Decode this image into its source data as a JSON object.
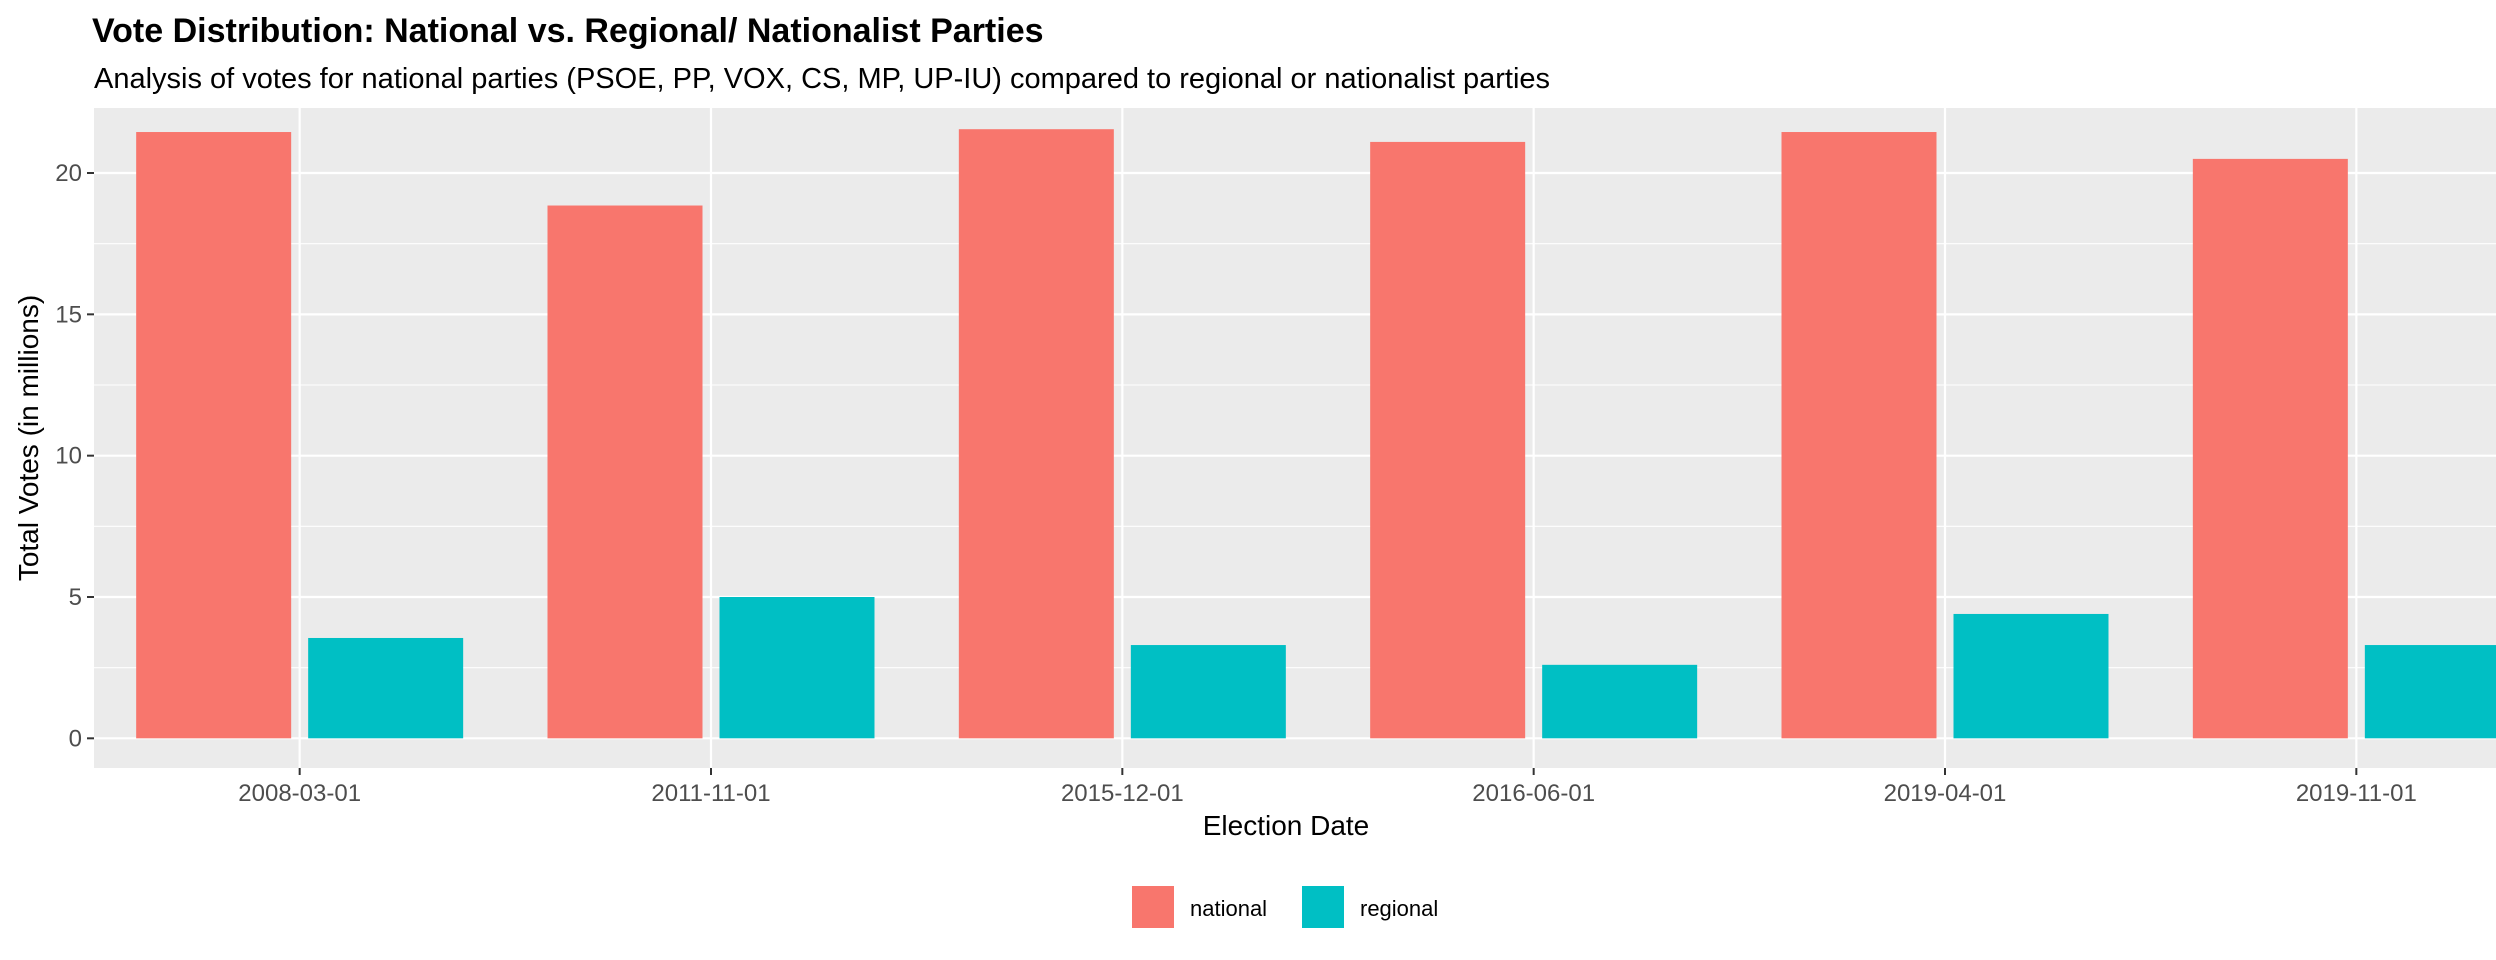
{
  "chart_data": {
    "type": "bar",
    "title": "Vote Distribution: National vs. Regional/ Nationalist Parties",
    "subtitle": "Analysis of votes for national parties (PSOE, PP, VOX, CS, MP, UP-IU) compared to regional or nationalist parties",
    "xlabel": "Election Date",
    "ylabel": "Total Votes (in millions)",
    "categories": [
      "2008-03-01",
      "2011-11-01",
      "2015-12-01",
      "2016-06-01",
      "2019-04-01",
      "2019-11-01"
    ],
    "series": [
      {
        "name": "national",
        "color": "#F8766D",
        "values": [
          21.45,
          18.85,
          21.55,
          21.1,
          21.45,
          20.5
        ]
      },
      {
        "name": "regional",
        "color": "#00BFC4",
        "values": [
          3.55,
          5.0,
          3.3,
          2.6,
          4.4,
          3.3
        ]
      }
    ],
    "ylim": [
      -1.05,
      22.3
    ],
    "yticks": [
      0,
      5,
      10,
      15,
      20
    ],
    "grid": true,
    "legend_position": "bottom",
    "panel_background": "#EBEBEB",
    "grid_color": "#FFFFFF"
  }
}
